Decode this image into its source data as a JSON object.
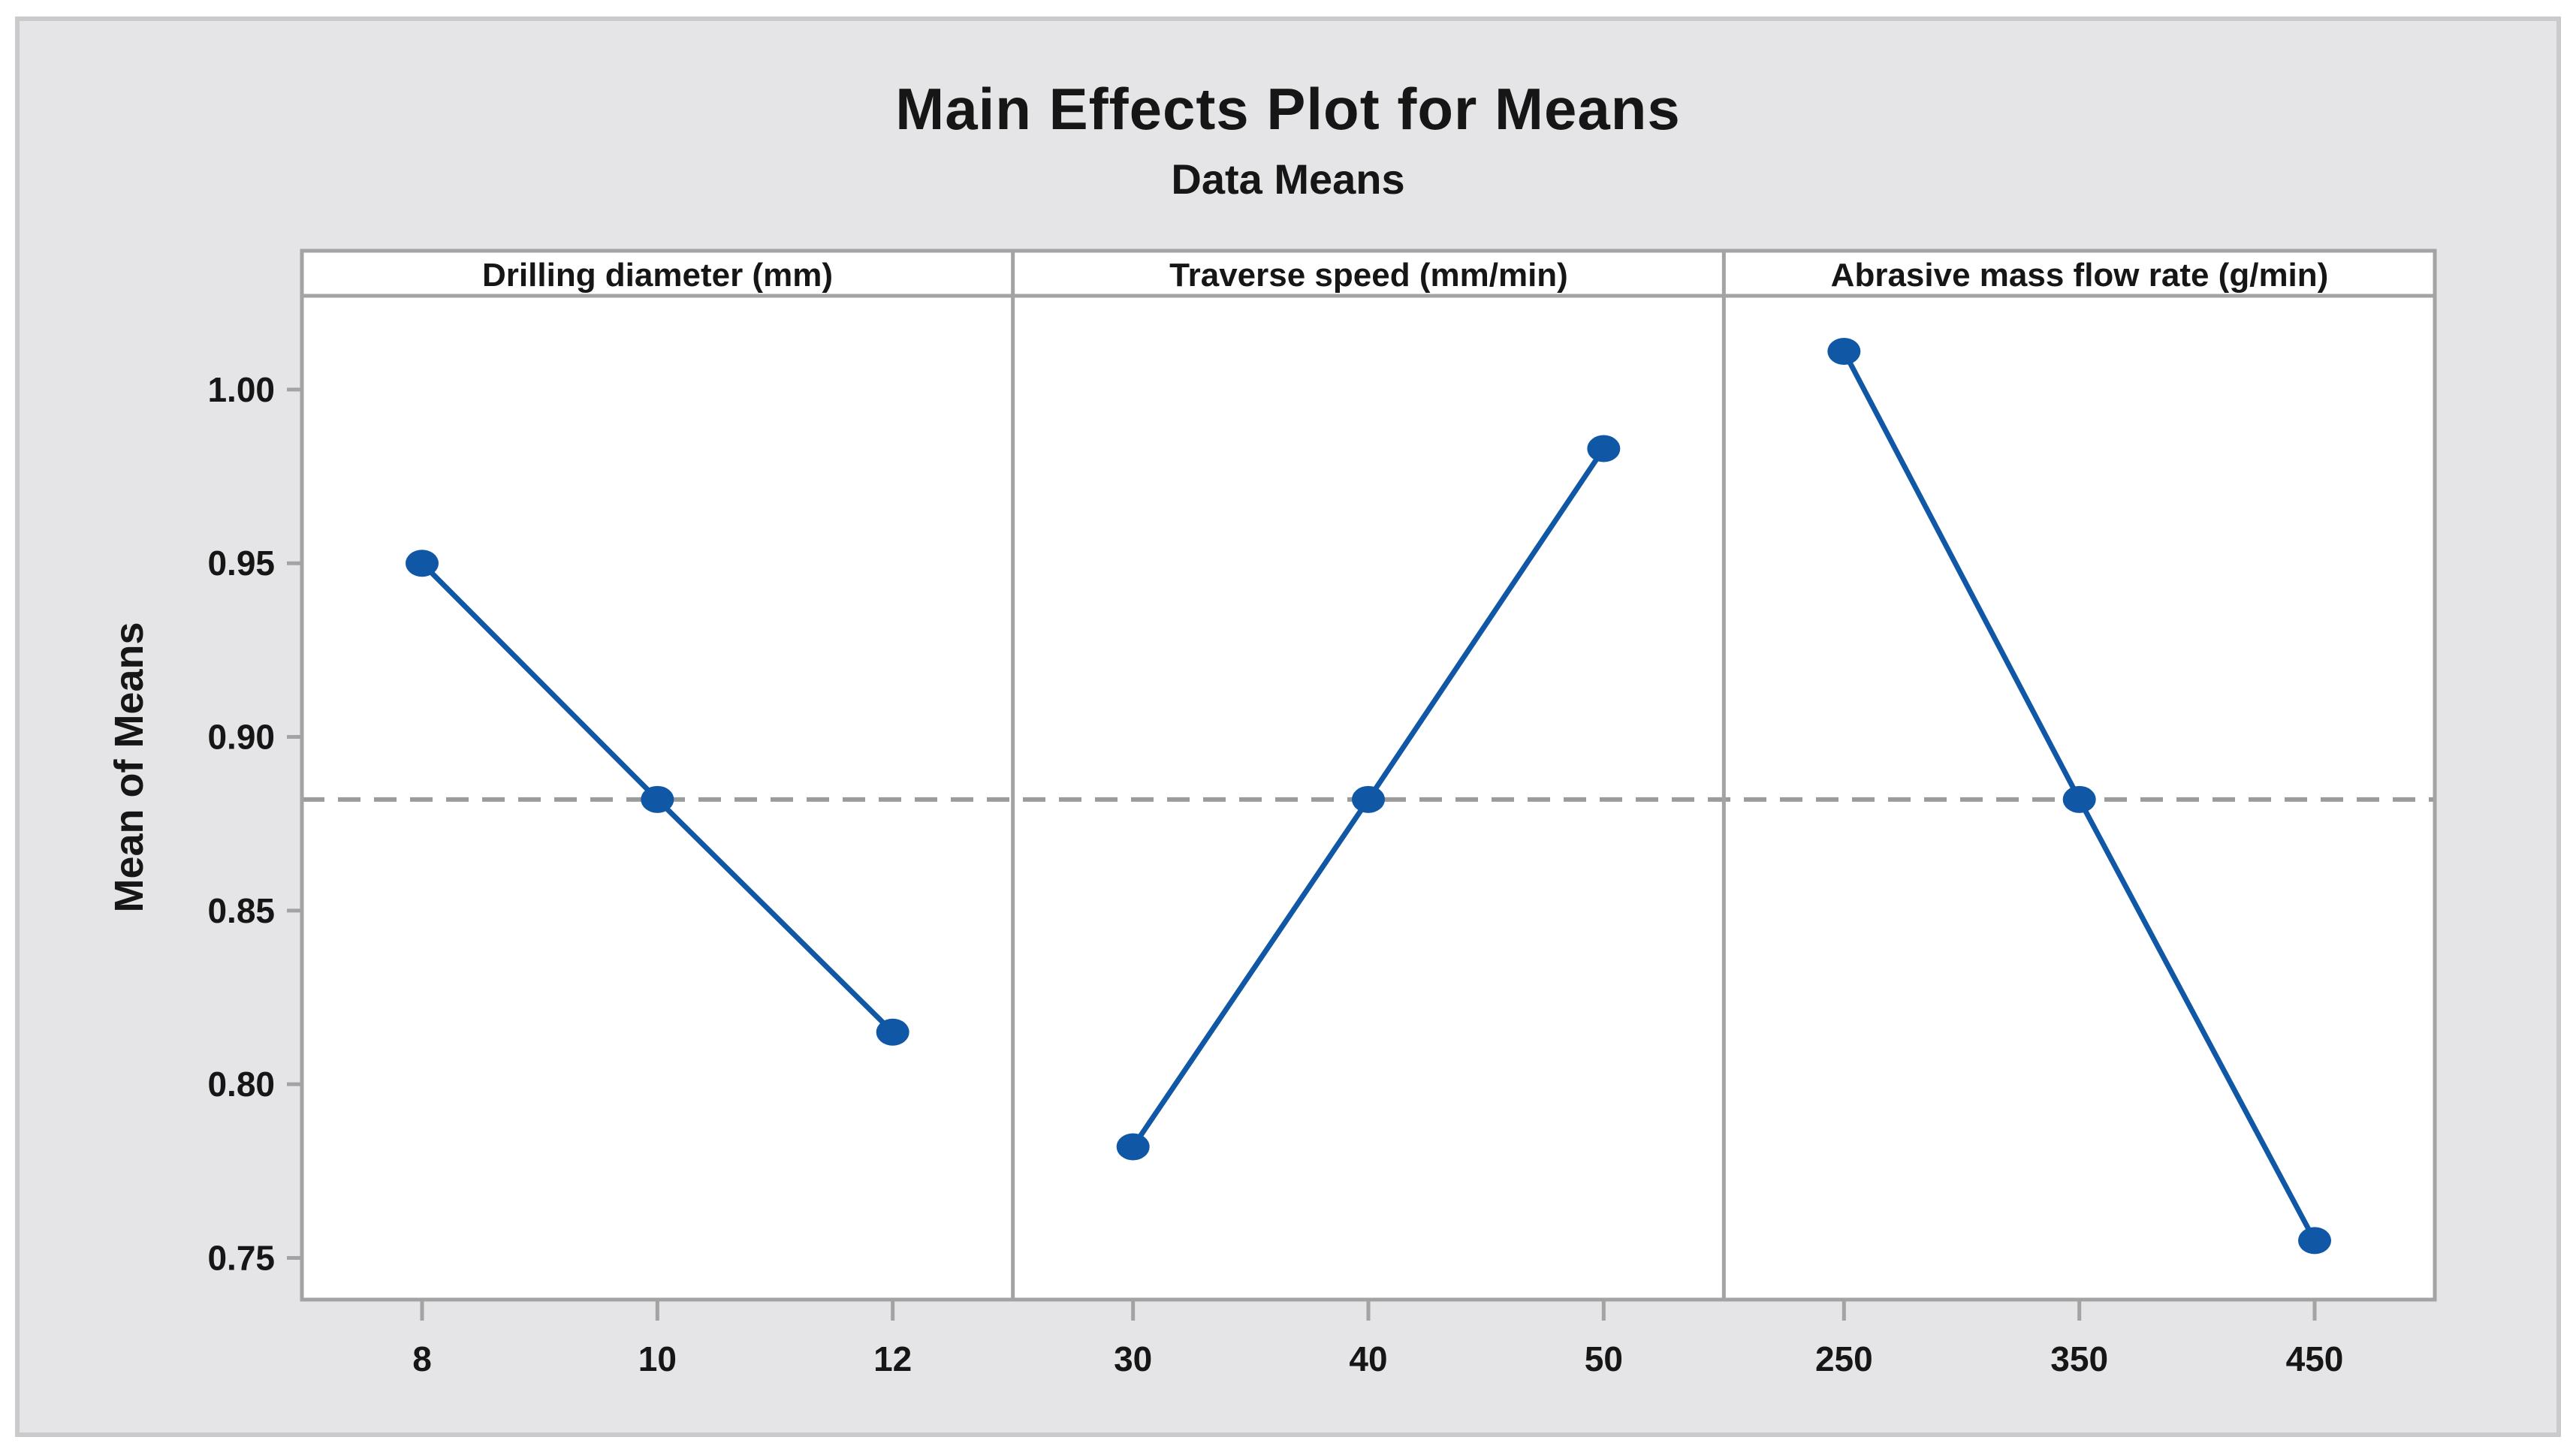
{
  "chart_data": {
    "type": "line",
    "title": "Main Effects Plot for Means",
    "subtitle": "Data Means",
    "ylabel": "Mean of Means",
    "ylim": [
      0.738,
      1.027
    ],
    "yticks": [
      1.0,
      0.95,
      0.9,
      0.85,
      0.8,
      0.75
    ],
    "ytick_labels": [
      "1.00",
      "0.95",
      "0.90",
      "0.85",
      "0.80",
      "0.75"
    ],
    "reference_line": 0.882,
    "grid": false,
    "legend": "none",
    "panels": [
      {
        "label": "Drilling diameter (mm)",
        "categories": [
          "8",
          "10",
          "12"
        ],
        "values": [
          0.95,
          0.882,
          0.815
        ]
      },
      {
        "label": "Traverse speed (mm/min)",
        "categories": [
          "30",
          "40",
          "50"
        ],
        "values": [
          0.782,
          0.882,
          0.983
        ]
      },
      {
        "label": "Abrasive mass flow rate (g/min)",
        "categories": [
          "250",
          "350",
          "450"
        ],
        "values": [
          1.011,
          0.882,
          0.755
        ]
      }
    ],
    "colors": {
      "series": "#1057A5",
      "reference": "#9B9B9B",
      "frame": "#A3A3A3",
      "tick": "#A3A3A3",
      "canvas_bg": "#E5E4E6",
      "canvas_border": "#CACACC",
      "plot_bg": "#FFFFFF",
      "text": "#161616"
    }
  }
}
